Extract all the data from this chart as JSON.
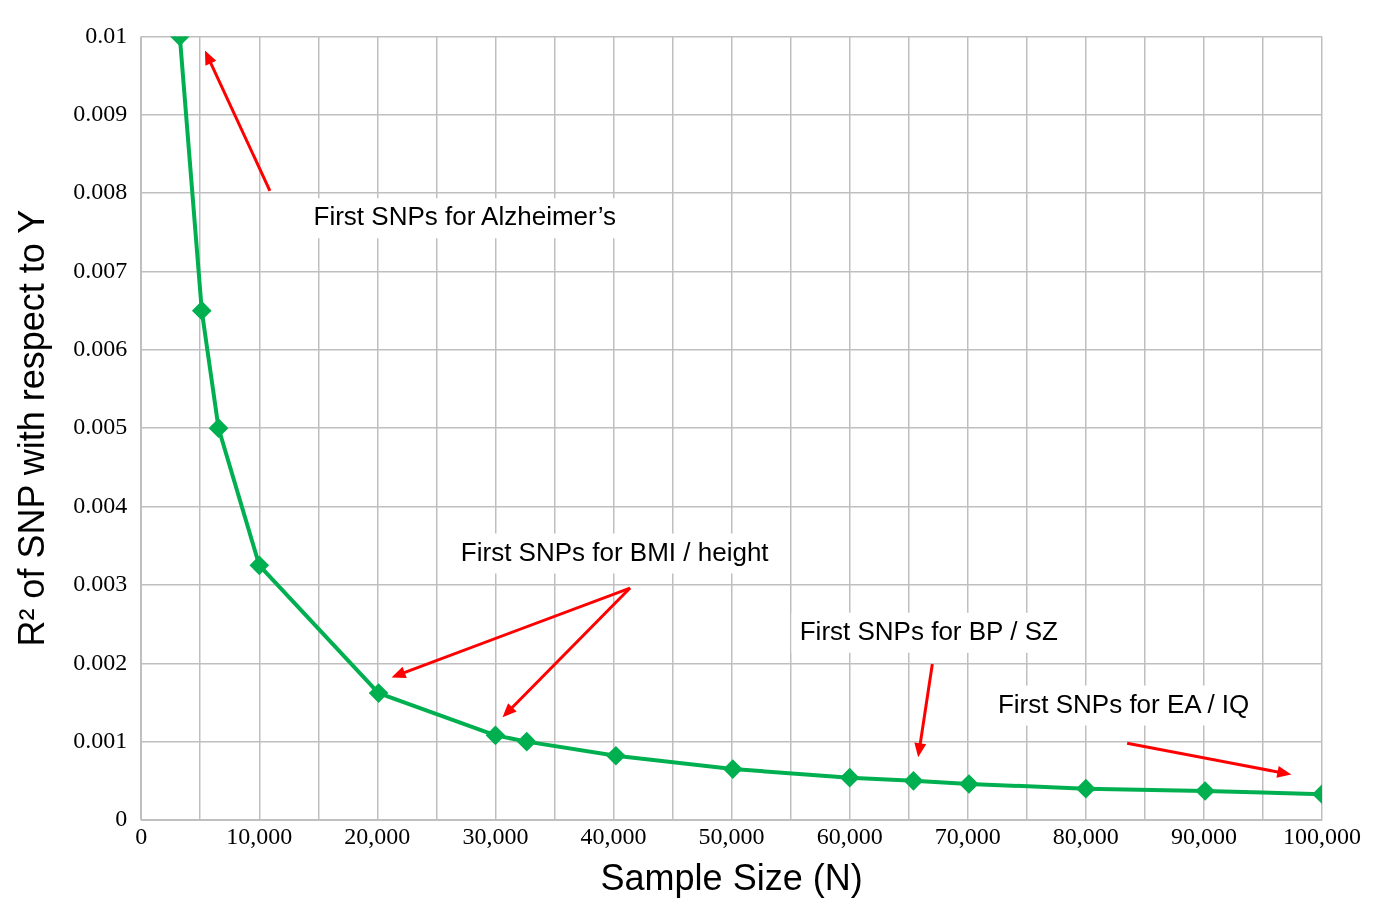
{
  "chart_data": {
    "type": "line",
    "xlabel": "Sample Size (N)",
    "ylabel": "R² of SNP with respect to Y",
    "x": [
      3270,
      5130,
      6550,
      10000,
      20100,
      30000,
      32650,
      40200,
      50100,
      60000,
      65400,
      70100,
      80000,
      90100,
      100000
    ],
    "series": [
      {
        "color": "#00b050",
        "values": [
          0.01,
          0.0065,
          0.005,
          0.00325,
          0.00162,
          0.00108,
          0.001,
          0.00082,
          0.00065,
          0.00054,
          0.0005,
          0.00046,
          0.0004,
          0.00037,
          0.00033
        ]
      }
    ],
    "xlim": [
      0,
      100000
    ],
    "xticks": [
      0,
      {
        "value": 5000,
        "label": null
      },
      {
        "value": 10000,
        "label": "10,000"
      },
      {
        "value": 15000,
        "label": null
      },
      {
        "value": 20000,
        "label": "20,000"
      },
      {
        "value": 25000,
        "label": null
      },
      {
        "value": 30000,
        "label": "30,000"
      },
      {
        "value": 35000,
        "label": null
      },
      {
        "value": 40000,
        "label": "40,000"
      },
      {
        "value": 45000,
        "label": null
      },
      {
        "value": 50000,
        "label": "50,000"
      },
      {
        "value": 55000,
        "label": null
      },
      {
        "value": 60000,
        "label": "60,000"
      },
      {
        "value": 65000,
        "label": null
      },
      {
        "value": 70000,
        "label": "70,000"
      },
      {
        "value": 75000,
        "label": null
      },
      {
        "value": 80000,
        "label": "80,000"
      },
      {
        "value": 85000,
        "label": null
      },
      {
        "value": 90000,
        "label": "90,000"
      },
      {
        "value": 95000,
        "label": null
      },
      {
        "value": 100000,
        "label": "100,000"
      }
    ],
    "ylim": [
      0,
      0.01
    ],
    "yticks": [
      0,
      0.001,
      0.002,
      0.003,
      0.004,
      0.005,
      0.006,
      0.007,
      0.008,
      0.009,
      0.01
    ],
    "grid": true,
    "marker": "diamond",
    "line_style": "solid",
    "annotations": [
      "First SNPs for Alzheimer’s",
      "First SNPs for BMI / height",
      "First SNPs for BP / SZ",
      "First SNPs for EA / IQ"
    ]
  }
}
